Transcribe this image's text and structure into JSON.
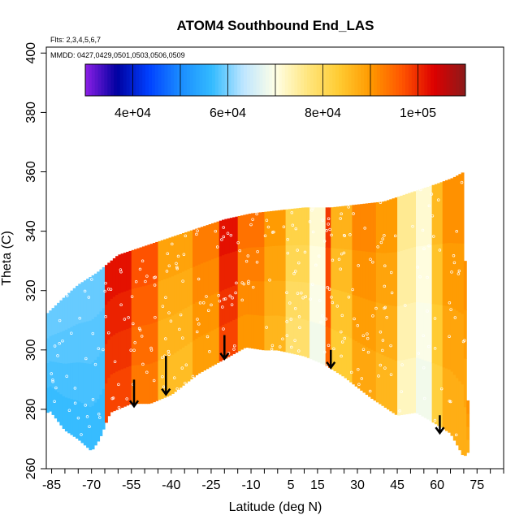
{
  "chart_data": {
    "type": "heatmap",
    "title": "ATOM4 Southbound End_LAS",
    "annotations": [
      "Flts: 2,3,4,5,6,7",
      "MMDD: 0427,0429,0501,0503,0506,0509"
    ],
    "xlabel": "Latitude (deg N)",
    "ylabel": "Theta (C)",
    "xlim": [
      -87,
      85
    ],
    "ylim": [
      260,
      402
    ],
    "x_ticks": [
      -85,
      -70,
      -55,
      -40,
      -25,
      -10,
      5,
      15,
      30,
      45,
      60,
      75
    ],
    "x_minor_step": 5,
    "y_ticks": [
      260,
      280,
      300,
      320,
      340,
      360,
      380,
      400
    ],
    "colorbar": {
      "range": [
        30000,
        110000
      ],
      "ticks": [
        40000,
        60000,
        80000,
        100000
      ],
      "tick_labels": [
        "4e+04",
        "6e+04",
        "8e+04",
        "1e+05"
      ],
      "colors": [
        "#8c1fe6",
        "#0000a0",
        "#0040ff",
        "#1a8cff",
        "#33bbff",
        "#bfe6ff",
        "#ffffe6",
        "#ffe680",
        "#ffcc33",
        "#ff9900",
        "#ff5500",
        "#dd0000",
        "#8c1a1a"
      ]
    },
    "field": {
      "bottom_boundary": [
        [
          -87,
          278
        ],
        [
          -86,
          280
        ],
        [
          -80,
          273
        ],
        [
          -75,
          270
        ],
        [
          -70,
          266
        ],
        [
          -67,
          270
        ],
        [
          -63,
          279
        ],
        [
          -55,
          282
        ],
        [
          -48,
          282
        ],
        [
          -40,
          285
        ],
        [
          -30,
          292
        ],
        [
          -20,
          297
        ],
        [
          -12,
          301
        ],
        [
          -5,
          300
        ],
        [
          0,
          300
        ],
        [
          10,
          298
        ],
        [
          18,
          295
        ],
        [
          25,
          291
        ],
        [
          35,
          284
        ],
        [
          45,
          278
        ],
        [
          52,
          279
        ],
        [
          58,
          276
        ],
        [
          65,
          272
        ],
        [
          70,
          264
        ],
        [
          72,
          266
        ]
      ],
      "top_boundary": [
        [
          -87,
          312
        ],
        [
          -80,
          318
        ],
        [
          -75,
          322
        ],
        [
          -68,
          326
        ],
        [
          -60,
          332
        ],
        [
          -50,
          335
        ],
        [
          -40,
          338
        ],
        [
          -30,
          341
        ],
        [
          -20,
          344
        ],
        [
          -10,
          346
        ],
        [
          0,
          347
        ],
        [
          10,
          348
        ],
        [
          20,
          348
        ],
        [
          30,
          349
        ],
        [
          40,
          350
        ],
        [
          50,
          353
        ],
        [
          60,
          356
        ],
        [
          66,
          358
        ],
        [
          70,
          360
        ],
        [
          71,
          300
        ],
        [
          72,
          266
        ]
      ],
      "bands": [
        {
          "x": [
            -87,
            -65
          ],
          "value": 58000
        },
        {
          "x": [
            -65,
            -55
          ],
          "value": 100000
        },
        {
          "x": [
            -55,
            -45
          ],
          "value": 95000
        },
        {
          "x": [
            -45,
            -32
          ],
          "value": 87000
        },
        {
          "x": [
            -32,
            -22
          ],
          "value": 91000
        },
        {
          "x": [
            -22,
            -15
          ],
          "value": 100000
        },
        {
          "x": [
            -15,
            -5
          ],
          "value": 92000
        },
        {
          "x": [
            -5,
            3
          ],
          "value": 88000
        },
        {
          "x": [
            3,
            12
          ],
          "value": 80000
        },
        {
          "x": [
            12,
            18
          ],
          "value": 70000
        },
        {
          "x": [
            18,
            20
          ],
          "value": 97000
        },
        {
          "x": [
            20,
            28
          ],
          "value": 85000
        },
        {
          "x": [
            28,
            37
          ],
          "value": 90000
        },
        {
          "x": [
            37,
            45
          ],
          "value": 88000
        },
        {
          "x": [
            45,
            52
          ],
          "value": 74000
        },
        {
          "x": [
            52,
            58
          ],
          "value": 70000
        },
        {
          "x": [
            58,
            62
          ],
          "value": 84000
        },
        {
          "x": [
            62,
            72
          ],
          "value": 89000
        }
      ]
    },
    "arrows": [
      {
        "x": -54,
        "y_top": 290,
        "y_tip": 281
      },
      {
        "x": -42,
        "y_top": 298,
        "y_tip": 285
      },
      {
        "x": -20,
        "y_top": 305,
        "y_tip": 297
      },
      {
        "x": 20,
        "y_top": 300,
        "y_tip": 294
      },
      {
        "x": 61,
        "y_top": 278,
        "y_tip": 272
      }
    ]
  }
}
